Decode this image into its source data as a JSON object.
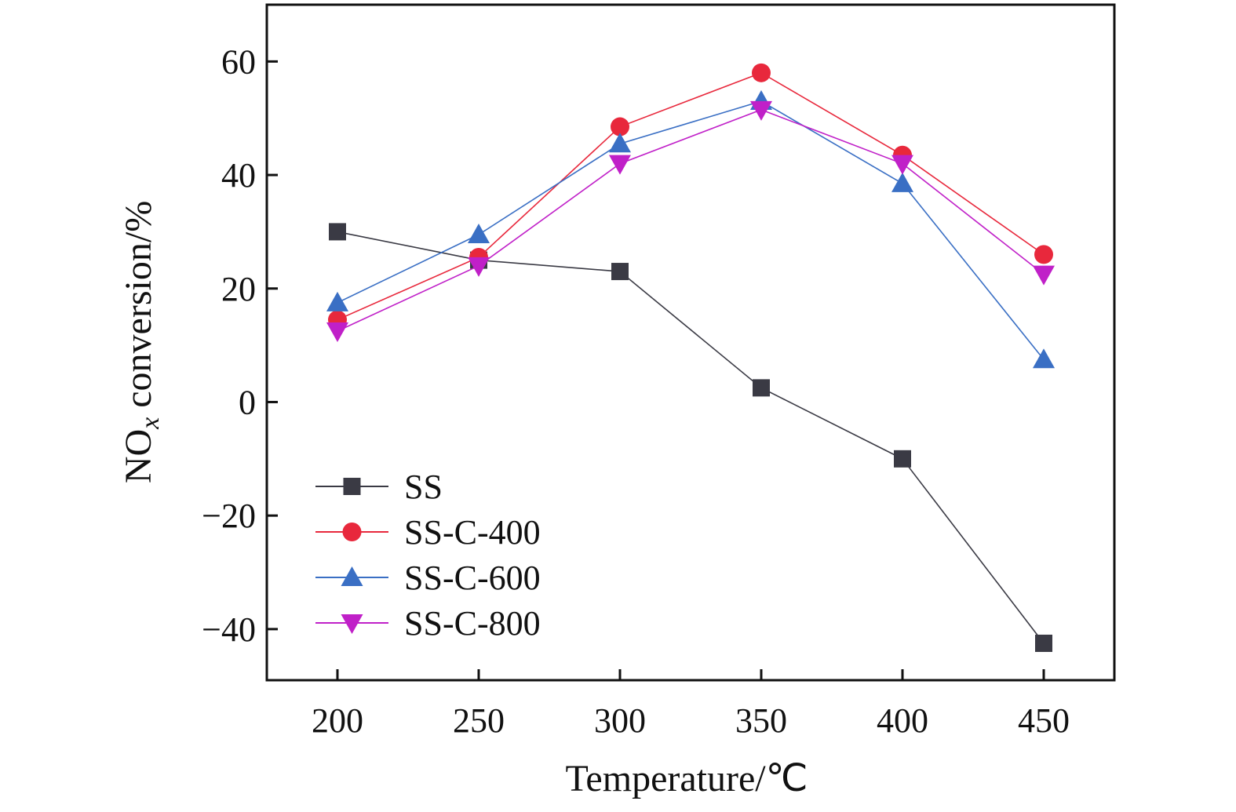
{
  "chart_data": {
    "type": "line",
    "title": "",
    "xlabel": "Temperature/℃",
    "ylabel_main": "NO",
    "ylabel_sub": "x",
    "ylabel_rest": " conversion/%",
    "x": [
      200,
      250,
      300,
      350,
      400,
      450
    ],
    "x_ticks": [
      "200",
      "250",
      "300",
      "350",
      "400",
      "450"
    ],
    "y_ticks": [
      "60",
      "40",
      "20",
      "0",
      "−20",
      "−40"
    ],
    "y_tick_values": [
      60,
      40,
      20,
      0,
      -20,
      -40
    ],
    "xlim": [
      175,
      475
    ],
    "ylim": [
      -49,
      70
    ],
    "grid": false,
    "legend_position": "bottom-left",
    "series": [
      {
        "name": "SS",
        "marker": "square",
        "color": "#3a3a44",
        "values": [
          30,
          25,
          23,
          2.5,
          -10,
          -42.5
        ]
      },
      {
        "name": "SS-C-400",
        "marker": "circle",
        "color": "#e8283c",
        "values": [
          14.5,
          25.5,
          48.5,
          58,
          43.5,
          26
        ]
      },
      {
        "name": "SS-C-600",
        "marker": "triangle-up",
        "color": "#3a6fc4",
        "values": [
          17.5,
          29.5,
          45.5,
          53,
          38.5,
          7.5
        ]
      },
      {
        "name": "SS-C-800",
        "marker": "triangle-down",
        "color": "#c020c8",
        "values": [
          12.5,
          24,
          42,
          51.5,
          42,
          22.5
        ]
      }
    ]
  }
}
